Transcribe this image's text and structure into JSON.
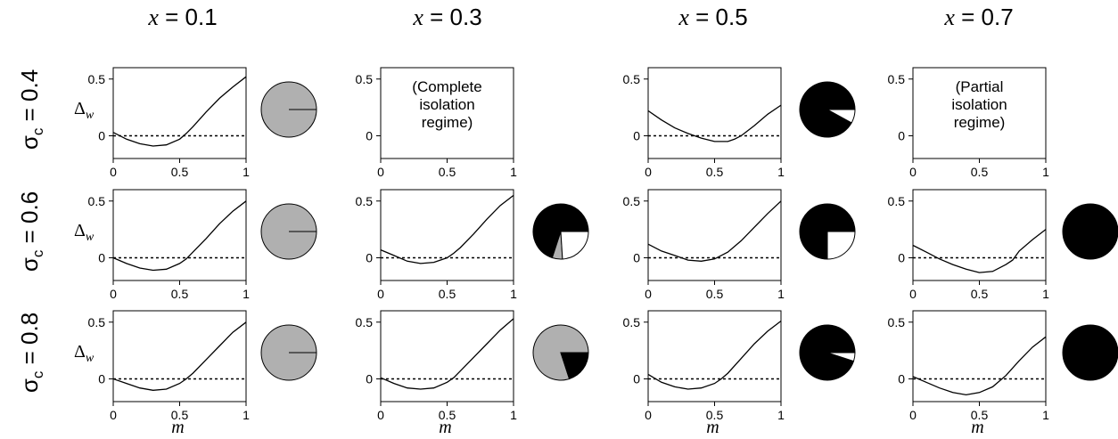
{
  "col_headers": [
    {
      "var": "x",
      "eq": " = 0.1"
    },
    {
      "var": "x",
      "eq": " = 0.3"
    },
    {
      "var": "x",
      "eq": " = 0.5"
    },
    {
      "var": "x",
      "eq": " = 0.7"
    }
  ],
  "row_headers": [
    {
      "sym": "σ",
      "sub": "c",
      "eq": " = 0.4"
    },
    {
      "sym": "σ",
      "sub": "c",
      "eq": " = 0.6"
    },
    {
      "sym": "σ",
      "sub": "c",
      "eq": " = 0.8"
    }
  ],
  "ylabel": {
    "sym": "Δ",
    "sub": "w"
  },
  "xlabel": "m",
  "colors": {
    "grey": "#b0b0b0",
    "black": "#000000",
    "white": "#ffffff"
  },
  "chart_data": {
    "type": "line",
    "xlim": [
      0,
      1
    ],
    "ylim": [
      -0.2,
      0.6
    ],
    "xticks": [
      "0",
      "0.5",
      "1"
    ],
    "yticks": [
      "0",
      "0.5"
    ],
    "reference_line": {
      "y": 0,
      "style": "dotted"
    },
    "panels": [
      {
        "row": 0,
        "col": 0,
        "x": [
          0,
          0.1,
          0.2,
          0.3,
          0.4,
          0.5,
          0.55,
          0.6,
          0.7,
          0.8,
          0.9,
          1.0
        ],
        "y": [
          0.03,
          -0.03,
          -0.07,
          -0.09,
          -0.08,
          -0.03,
          0.02,
          0.08,
          0.21,
          0.33,
          0.43,
          0.52
        ]
      },
      {
        "row": 0,
        "col": 1,
        "note": [
          "(Complete",
          "isolation",
          "regime)"
        ]
      },
      {
        "row": 0,
        "col": 2,
        "x": [
          0,
          0.1,
          0.2,
          0.3,
          0.4,
          0.5,
          0.6,
          0.65,
          0.7,
          0.8,
          0.9,
          1.0
        ],
        "y": [
          0.22,
          0.14,
          0.07,
          0.02,
          -0.02,
          -0.05,
          -0.05,
          -0.03,
          0.0,
          0.09,
          0.19,
          0.27
        ]
      },
      {
        "row": 0,
        "col": 3,
        "note": [
          "(Partial",
          "isolation",
          "regime)"
        ]
      },
      {
        "row": 1,
        "col": 0,
        "x": [
          0,
          0.1,
          0.2,
          0.3,
          0.4,
          0.5,
          0.55,
          0.6,
          0.7,
          0.8,
          0.9,
          1.0
        ],
        "y": [
          0.0,
          -0.05,
          -0.09,
          -0.11,
          -0.1,
          -0.05,
          -0.01,
          0.05,
          0.17,
          0.3,
          0.41,
          0.5
        ]
      },
      {
        "row": 1,
        "col": 1,
        "x": [
          0,
          0.1,
          0.2,
          0.3,
          0.4,
          0.5,
          0.55,
          0.6,
          0.7,
          0.8,
          0.9,
          1.0
        ],
        "y": [
          0.07,
          0.02,
          -0.03,
          -0.05,
          -0.04,
          0.0,
          0.04,
          0.09,
          0.21,
          0.34,
          0.46,
          0.55
        ]
      },
      {
        "row": 1,
        "col": 2,
        "x": [
          0,
          0.1,
          0.2,
          0.3,
          0.4,
          0.5,
          0.6,
          0.7,
          0.8,
          0.9,
          1.0
        ],
        "y": [
          0.12,
          0.06,
          0.02,
          -0.02,
          -0.03,
          -0.01,
          0.05,
          0.15,
          0.27,
          0.39,
          0.5
        ]
      },
      {
        "row": 1,
        "col": 3,
        "x": [
          0,
          0.1,
          0.2,
          0.3,
          0.4,
          0.5,
          0.6,
          0.7,
          0.75,
          0.8,
          0.9,
          1.0
        ],
        "y": [
          0.11,
          0.05,
          -0.01,
          -0.06,
          -0.1,
          -0.13,
          -0.12,
          -0.06,
          -0.02,
          0.06,
          0.16,
          0.25
        ]
      },
      {
        "row": 2,
        "col": 0,
        "x": [
          0,
          0.1,
          0.2,
          0.3,
          0.4,
          0.5,
          0.55,
          0.6,
          0.7,
          0.8,
          0.9,
          1.0
        ],
        "y": [
          0.0,
          -0.04,
          -0.08,
          -0.1,
          -0.09,
          -0.04,
          0.0,
          0.05,
          0.17,
          0.29,
          0.41,
          0.5
        ]
      },
      {
        "row": 2,
        "col": 1,
        "x": [
          0,
          0.1,
          0.2,
          0.3,
          0.4,
          0.5,
          0.55,
          0.6,
          0.7,
          0.8,
          0.9,
          1.0
        ],
        "y": [
          0.01,
          -0.04,
          -0.08,
          -0.09,
          -0.08,
          -0.03,
          0.01,
          0.07,
          0.19,
          0.31,
          0.43,
          0.53
        ]
      },
      {
        "row": 2,
        "col": 2,
        "x": [
          0,
          0.1,
          0.2,
          0.3,
          0.4,
          0.5,
          0.55,
          0.6,
          0.7,
          0.8,
          0.9,
          1.0
        ],
        "y": [
          0.04,
          -0.03,
          -0.07,
          -0.09,
          -0.08,
          -0.04,
          0.0,
          0.05,
          0.18,
          0.31,
          0.42,
          0.51
        ]
      },
      {
        "row": 2,
        "col": 3,
        "x": [
          0,
          0.1,
          0.2,
          0.3,
          0.4,
          0.5,
          0.6,
          0.7,
          0.8,
          0.9,
          1.0
        ],
        "y": [
          0.02,
          -0.03,
          -0.08,
          -0.12,
          -0.14,
          -0.12,
          -0.07,
          0.03,
          0.16,
          0.28,
          0.37
        ]
      }
    ],
    "pies": [
      {
        "row": 0,
        "col": 0,
        "slices": [
          {
            "fill": "grey",
            "value": 1.0
          }
        ],
        "edge_line": true
      },
      {
        "row": 0,
        "col": 2,
        "slices": [
          {
            "fill": "black",
            "value": 0.92
          },
          {
            "fill": "white",
            "value": 0.08
          }
        ]
      },
      {
        "row": 1,
        "col": 0,
        "slices": [
          {
            "fill": "grey",
            "value": 1.0
          }
        ],
        "edge_line": true
      },
      {
        "row": 1,
        "col": 1,
        "slices": [
          {
            "fill": "black",
            "value": 0.7
          },
          {
            "fill": "grey",
            "value": 0.06
          },
          {
            "fill": "white",
            "value": 0.24
          }
        ]
      },
      {
        "row": 1,
        "col": 2,
        "slices": [
          {
            "fill": "black",
            "value": 0.75
          },
          {
            "fill": "white",
            "value": 0.25
          }
        ]
      },
      {
        "row": 1,
        "col": 3,
        "slices": [
          {
            "fill": "black",
            "value": 1.0
          }
        ]
      },
      {
        "row": 2,
        "col": 0,
        "slices": [
          {
            "fill": "grey",
            "value": 1.0
          }
        ],
        "edge_line": true
      },
      {
        "row": 2,
        "col": 1,
        "slices": [
          {
            "fill": "grey",
            "value": 0.8
          },
          {
            "fill": "black",
            "value": 0.2
          }
        ]
      },
      {
        "row": 2,
        "col": 2,
        "slices": [
          {
            "fill": "black",
            "value": 0.95
          },
          {
            "fill": "white",
            "value": 0.05
          }
        ]
      },
      {
        "row": 2,
        "col": 3,
        "slices": [
          {
            "fill": "black",
            "value": 1.0
          }
        ]
      }
    ]
  }
}
